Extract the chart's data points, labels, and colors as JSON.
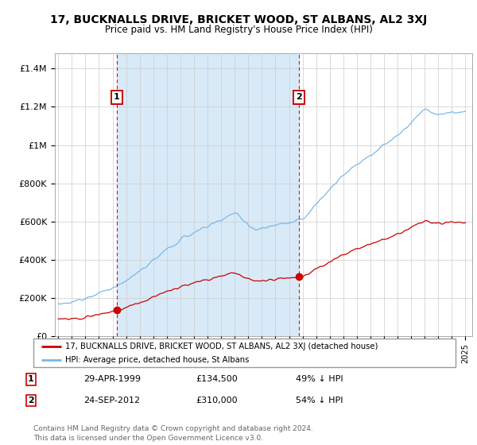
{
  "title": "17, BUCKNALLS DRIVE, BRICKET WOOD, ST ALBANS, AL2 3XJ",
  "subtitle": "Price paid vs. HM Land Registry's House Price Index (HPI)",
  "ylabel_ticks": [
    "£0",
    "£200K",
    "£400K",
    "£600K",
    "£800K",
    "£1M",
    "£1.2M",
    "£1.4M"
  ],
  "ytick_values": [
    0,
    200000,
    400000,
    600000,
    800000,
    1000000,
    1200000,
    1400000
  ],
  "ylim": [
    0,
    1480000
  ],
  "xlim_start": 1994.75,
  "xlim_end": 2025.5,
  "hpi_color": "#7ab8e8",
  "hpi_fill_color": "#d8eaf8",
  "price_color": "#cc0000",
  "vline_color": "#cc0000",
  "marker1_date": 1999.32,
  "marker1_price": 134500,
  "marker1_label": "1",
  "marker1_date_str": "29-APR-1999",
  "marker1_price_str": "£134,500",
  "marker1_pct": "49% ↓ HPI",
  "marker2_date": 2012.73,
  "marker2_price": 310000,
  "marker2_label": "2",
  "marker2_date_str": "24-SEP-2012",
  "marker2_price_str": "£310,000",
  "marker2_pct": "54% ↓ HPI",
  "legend_line1": "17, BUCKNALLS DRIVE, BRICKET WOOD, ST ALBANS, AL2 3XJ (detached house)",
  "legend_line2": "HPI: Average price, detached house, St Albans",
  "footnote": "Contains HM Land Registry data © Crown copyright and database right 2024.\nThis data is licensed under the Open Government Licence v3.0.",
  "bg_color": "#ffffff",
  "grid_color": "#cccccc"
}
